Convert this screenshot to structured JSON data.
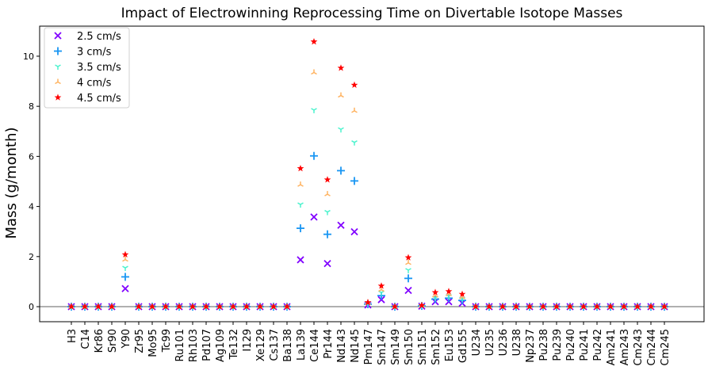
{
  "chart_data": {
    "type": "scatter",
    "title": "Impact of Electrowinning Reprocessing Time on Divertable Isotope Masses",
    "xlabel": "",
    "ylabel": "Mass (g/month)",
    "ylim": [
      -0.6,
      11.2
    ],
    "yticks": [
      0,
      2,
      4,
      6,
      8,
      10
    ],
    "categories": [
      "H3",
      "C14",
      "Kr86",
      "Sr90",
      "Y90",
      "Zr95",
      "Mo95",
      "Tc99",
      "Ru101",
      "Rh103",
      "Pd107",
      "Ag109",
      "Te132",
      "I129",
      "Xe129",
      "Cs137",
      "Ba138",
      "La139",
      "Ce144",
      "Pr144",
      "Nd143",
      "Nd145",
      "Pm147",
      "Sm147",
      "Sm149",
      "Sm150",
      "Sm151",
      "Sm152",
      "Eu153",
      "Gd155",
      "U234",
      "U235",
      "U236",
      "U238",
      "Np237",
      "Pu238",
      "Pu239",
      "Pu240",
      "Pu241",
      "Pu242",
      "Am241",
      "Am243",
      "Cm243",
      "Cm244",
      "Cm245"
    ],
    "reference_line": 0,
    "grid": false,
    "legend_position": "upper-left",
    "series": [
      {
        "name": "2.5 cm/s",
        "marker": "x",
        "color": "#8000ff",
        "values": [
          0,
          0,
          0,
          0,
          0.72,
          0,
          0,
          0,
          0,
          0,
          0,
          0,
          0,
          0,
          0,
          0,
          0,
          1.87,
          3.58,
          1.72,
          3.25,
          2.99,
          0.07,
          0.28,
          0,
          0.65,
          0.02,
          0.2,
          0.2,
          0.14,
          0,
          0,
          0,
          0,
          0,
          0,
          0,
          0,
          0,
          0,
          0,
          0,
          0,
          0,
          0
        ]
      },
      {
        "name": "3 cm/s",
        "marker": "+",
        "color": "#1996f3",
        "values": [
          0,
          0,
          0,
          0,
          1.19,
          0,
          0,
          0,
          0,
          0,
          0,
          0,
          0,
          0,
          0,
          0,
          0,
          3.13,
          6.02,
          2.89,
          5.43,
          5.02,
          0.1,
          0.44,
          0,
          1.13,
          0.03,
          0.3,
          0.34,
          0.25,
          0,
          0,
          0,
          0,
          0,
          0,
          0,
          0,
          0,
          0,
          0,
          0,
          0,
          0,
          0
        ]
      },
      {
        "name": "3.5 cm/s",
        "marker": "tri_down",
        "color": "#4df3ce",
        "values": [
          0,
          0,
          0,
          0,
          1.55,
          0,
          0,
          0,
          0,
          0,
          0,
          0,
          0,
          0,
          0,
          0,
          0,
          4.08,
          7.85,
          3.78,
          7.08,
          6.56,
          0.13,
          0.56,
          0,
          1.46,
          0.04,
          0.35,
          0.42,
          0.31,
          0,
          0,
          0,
          0,
          0,
          0,
          0,
          0,
          0,
          0,
          0,
          0,
          0,
          0,
          0
        ]
      },
      {
        "name": "4 cm/s",
        "marker": "tri_up",
        "color": "#ffb360",
        "values": [
          0,
          0,
          0,
          0,
          1.88,
          0,
          0,
          0,
          0,
          0,
          0,
          0,
          0,
          0,
          0,
          0,
          0,
          4.87,
          9.35,
          4.49,
          8.43,
          7.82,
          0.15,
          0.68,
          0,
          1.75,
          0.05,
          0.45,
          0.5,
          0.38,
          0,
          0,
          0,
          0,
          0,
          0,
          0,
          0,
          0,
          0,
          0,
          0,
          0,
          0,
          0
        ]
      },
      {
        "name": "4.5 cm/s",
        "marker": "star",
        "color": "#ff0000",
        "values": [
          0,
          0,
          0,
          0,
          2.08,
          0,
          0,
          0,
          0,
          0,
          0,
          0,
          0,
          0,
          0,
          0,
          0,
          5.52,
          10.58,
          5.07,
          9.53,
          8.85,
          0.17,
          0.83,
          0,
          1.96,
          0.05,
          0.57,
          0.61,
          0.5,
          0,
          0,
          0,
          0,
          0,
          0,
          0,
          0,
          0,
          0,
          0,
          0,
          0,
          0,
          0
        ]
      }
    ]
  }
}
